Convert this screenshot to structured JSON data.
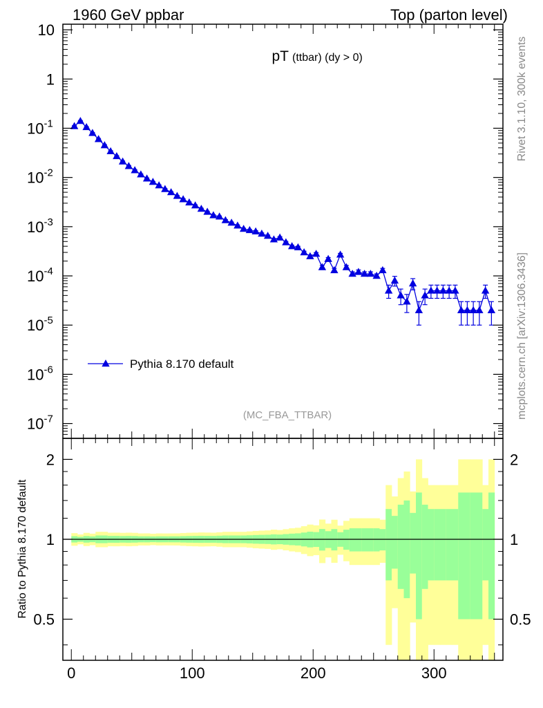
{
  "header": {
    "left": "1960 GeV ppbar",
    "right": "Top (parton level)"
  },
  "side_labels": {
    "rivet": "Rivet 3.1.10,  300k events",
    "mcplots": "mcplots.cern.ch [arXiv:1306.3436]"
  },
  "chart_data": {
    "type": "line",
    "title_main": "pT",
    "title_sub": "(ttbar) (dy > 0)",
    "analysis_label": "(MC_FBA_TTBAR)",
    "legend": {
      "entries": [
        "Pythia 8.170 default"
      ],
      "placement": "lower-left"
    },
    "series": [
      {
        "name": "Pythia 8.170 default",
        "color": "#0000e0",
        "x": [
          2.5,
          7.5,
          12.5,
          17.5,
          22.5,
          27.5,
          32.5,
          37.5,
          42.5,
          47.5,
          52.5,
          57.5,
          62.5,
          67.5,
          72.5,
          77.5,
          82.5,
          87.5,
          92.5,
          97.5,
          102.5,
          107.5,
          112.5,
          117.5,
          122.5,
          127.5,
          132.5,
          137.5,
          142.5,
          147.5,
          152.5,
          157.5,
          162.5,
          167.5,
          172.5,
          177.5,
          182.5,
          187.5,
          192.5,
          197.5,
          202.5,
          207.5,
          212.5,
          217.5,
          222.5,
          227.5,
          232.5,
          237.5,
          242.5,
          247.5,
          252.5,
          257.5,
          262.5,
          267.5,
          272.5,
          277.5,
          282.5,
          287.5,
          292.5,
          297.5,
          302.5,
          307.5,
          312.5,
          317.5,
          322.5,
          327.5,
          332.5,
          337.5,
          342.5,
          347.5
        ],
        "y": [
          0.11,
          0.14,
          0.105,
          0.08,
          0.06,
          0.045,
          0.034,
          0.027,
          0.021,
          0.017,
          0.014,
          0.0115,
          0.0095,
          0.0081,
          0.0069,
          0.0058,
          0.005,
          0.0042,
          0.0036,
          0.0031,
          0.0027,
          0.0023,
          0.002,
          0.0017,
          0.0016,
          0.00135,
          0.0012,
          0.00105,
          0.0009,
          0.00085,
          0.0008,
          0.00072,
          0.00065,
          0.00055,
          0.0006,
          0.00048,
          0.0004,
          0.00038,
          0.0003,
          0.00025,
          0.00028,
          0.00015,
          0.00022,
          0.00013,
          0.00027,
          0.00015,
          0.00011,
          0.00012,
          0.00011,
          0.00011,
          0.0001,
          0.00013,
          5e-05,
          8e-05,
          4e-05,
          3e-05,
          7e-05,
          2e-05,
          4e-05,
          5e-05,
          5e-05,
          5e-05,
          5e-05,
          5e-05,
          2e-05,
          2e-05,
          2e-05,
          2e-05,
          5e-05,
          2e-05
        ],
        "yerr_up": [
          0.003,
          0.003,
          0.003,
          0.002,
          0.002,
          0.0015,
          0.001,
          0.0008,
          0.0006,
          0.0005,
          0.0004,
          0.0003,
          0.00025,
          0.0002,
          0.00018,
          0.00015,
          0.00013,
          0.00011,
          0.0001,
          9e-05,
          8e-05,
          7e-05,
          6e-05,
          5e-05,
          5e-05,
          4.5e-05,
          4e-05,
          3.5e-05,
          3e-05,
          3e-05,
          3e-05,
          2.8e-05,
          2.6e-05,
          2.4e-05,
          2.5e-05,
          2.2e-05,
          2e-05,
          2e-05,
          1.8e-05,
          1.7e-05,
          1.8e-05,
          1.4e-05,
          1.6e-05,
          1.2e-05,
          1.7e-05,
          1.3e-05,
          1.1e-05,
          1.2e-05,
          1.1e-05,
          1.1e-05,
          1e-05,
          1.2e-05,
          1.5e-05,
          1.8e-05,
          1.4e-05,
          1.2e-05,
          1.8e-05,
          1e-05,
          1.4e-05,
          1.5e-05,
          1.5e-05,
          1.5e-05,
          1.5e-05,
          1.5e-05,
          1e-05,
          1e-05,
          1e-05,
          1e-05,
          1.5e-05,
          1e-05
        ],
        "yerr_down": [
          0.003,
          0.003,
          0.003,
          0.002,
          0.002,
          0.0015,
          0.001,
          0.0008,
          0.0006,
          0.0005,
          0.0004,
          0.0003,
          0.00025,
          0.0002,
          0.00018,
          0.00015,
          0.00013,
          0.00011,
          0.0001,
          9e-05,
          8e-05,
          7e-05,
          6e-05,
          5e-05,
          5e-05,
          4.5e-05,
          4e-05,
          3.5e-05,
          3e-05,
          3e-05,
          3e-05,
          2.8e-05,
          2.6e-05,
          2.4e-05,
          2.5e-05,
          2.2e-05,
          2e-05,
          2e-05,
          1.8e-05,
          1.7e-05,
          1.8e-05,
          1.4e-05,
          1.6e-05,
          1.2e-05,
          1.7e-05,
          1.3e-05,
          1.1e-05,
          1.2e-05,
          1.1e-05,
          1.1e-05,
          1e-05,
          1.2e-05,
          1.5e-05,
          1.8e-05,
          1.4e-05,
          1.2e-05,
          1.8e-05,
          1e-05,
          1.4e-05,
          1.5e-05,
          1.5e-05,
          1.5e-05,
          1.5e-05,
          1.5e-05,
          1e-05,
          1e-05,
          1e-05,
          1e-05,
          1.5e-05,
          1e-05
        ]
      }
    ],
    "main_axis": {
      "xlim": [
        -7,
        357
      ],
      "ylim": [
        5e-08,
        13
      ],
      "yscale": "log",
      "yticks": [
        1e-07,
        1e-06,
        1e-05,
        0.0001,
        0.001,
        0.01,
        0.1,
        1,
        10
      ],
      "ytick_labels": [
        {
          "base": "10",
          "exp": "-7"
        },
        {
          "base": "10",
          "exp": "-6"
        },
        {
          "base": "10",
          "exp": "-5"
        },
        {
          "base": "10",
          "exp": "-4"
        },
        {
          "base": "10",
          "exp": "-3"
        },
        {
          "base": "10",
          "exp": "-2"
        },
        {
          "base": "10",
          "exp": "-1"
        },
        {
          "base": "1",
          "exp": ""
        },
        {
          "base": "10",
          "exp": ""
        }
      ]
    },
    "ratio_axis": {
      "ylabel": "Ratio to Pythia 8.170 default",
      "ylim": [
        0.35,
        2.4
      ],
      "yscale": "log",
      "yticks": [
        0.5,
        1,
        2
      ],
      "ytick_labels": [
        "0.5",
        "1",
        "2"
      ],
      "ratio_line": 1,
      "xticks": [
        0,
        100,
        200,
        300
      ],
      "xtick_labels": [
        "0",
        "100",
        "200",
        "300"
      ],
      "band_inner_color": "#99ff99",
      "band_outer_color": "#ffff99"
    }
  }
}
